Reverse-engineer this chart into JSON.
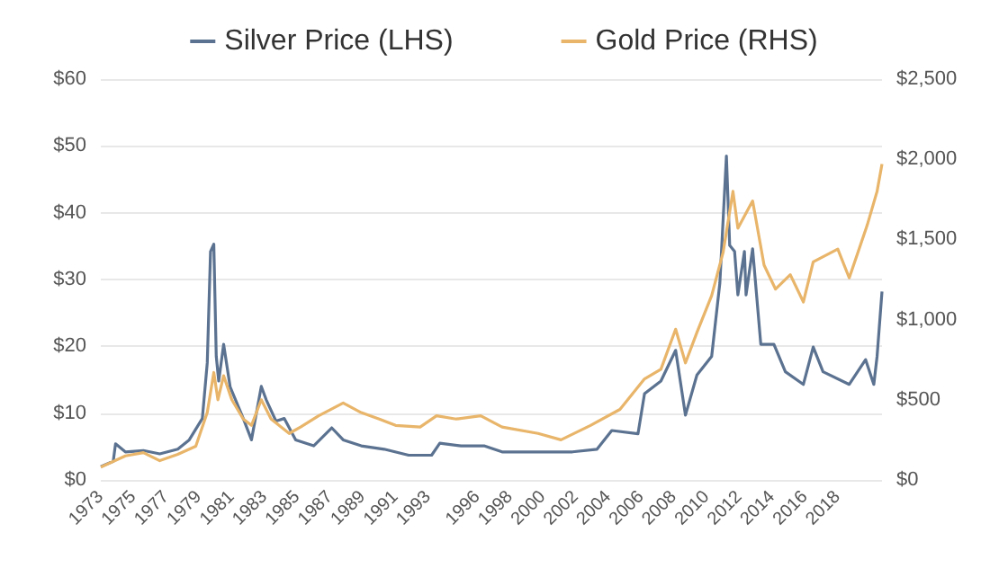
{
  "chart_data": {
    "type": "line",
    "legend": "top",
    "grid": "y",
    "marker": "none",
    "line_style": "solid",
    "xlim": [
      1973,
      2020.7
    ],
    "xticks": [
      1973,
      1975,
      1977,
      1979,
      1981,
      1983,
      1985,
      1987,
      1989,
      1991,
      1993,
      1996,
      1998,
      2000,
      2002,
      2004,
      2006,
      2008,
      2010,
      2012,
      2014,
      2016,
      2018
    ],
    "ylim": [
      0,
      60
    ],
    "yticks": [
      {
        "value": 0,
        "label": "$0"
      },
      {
        "value": 10,
        "label": "$10"
      },
      {
        "value": 20,
        "label": "$20"
      },
      {
        "value": 30,
        "label": "$30"
      },
      {
        "value": 40,
        "label": "$40"
      },
      {
        "value": 50,
        "label": "$50"
      },
      {
        "value": 60,
        "label": "$60"
      }
    ],
    "y2lim": [
      0,
      2500
    ],
    "y2ticks": [
      {
        "value": 0,
        "label": "$0"
      },
      {
        "value": 500,
        "label": "$500"
      },
      {
        "value": 1000,
        "label": "$1,000"
      },
      {
        "value": 1500,
        "label": "$1,500"
      },
      {
        "value": 2000,
        "label": "$2,000"
      },
      {
        "value": 2500,
        "label": "$2,500"
      }
    ],
    "series": [
      {
        "name": "Silver Price (LHS)",
        "color": "#5b7290",
        "x": [
          1973,
          1973.76,
          1973.9,
          1974.5,
          1975.6,
          1976.6,
          1977.7,
          1978.4,
          1979.2,
          1979.5,
          1979.7,
          1979.9,
          1980.05,
          1980.2,
          1980.5,
          1980.9,
          1981.7,
          1982.2,
          1982.8,
          1983.1,
          1983.7,
          1984.2,
          1984.9,
          1986,
          1987.1,
          1987.8,
          1988.9,
          1990.3,
          1991.8,
          1993.2,
          1993.7,
          1995,
          1996.4,
          1997.5,
          1999.7,
          2001.8,
          2003.3,
          2004.2,
          2005.8,
          2006.2,
          2007.2,
          2008.1,
          2008.7,
          2009.4,
          2010.3,
          2010.8,
          2011.2,
          2011.4,
          2011.7,
          2011.9,
          2012.3,
          2012.4,
          2012.8,
          2013.3,
          2014.1,
          2014.8,
          2015.9,
          2016.5,
          2017.1,
          2018.7,
          2019.7,
          2020.2,
          2020.4,
          2020.7
        ],
        "values": [
          2.0,
          2.8,
          5.4,
          4.2,
          4.4,
          3.9,
          4.6,
          6.0,
          9.2,
          17.5,
          34.2,
          35.3,
          18.5,
          14.8,
          20.3,
          13.9,
          9.2,
          6.0,
          14.0,
          12.0,
          8.8,
          9.2,
          6.0,
          5.1,
          7.8,
          6.0,
          5.1,
          4.6,
          3.7,
          3.7,
          5.5,
          5.1,
          5.1,
          4.2,
          4.2,
          4.2,
          4.6,
          7.4,
          6.9,
          12.9,
          14.8,
          19.4,
          9.7,
          15.7,
          18.5,
          29.5,
          48.5,
          35.1,
          34.2,
          27.7,
          34.2,
          27.7,
          34.6,
          20.3,
          20.3,
          16.2,
          14.3,
          19.9,
          16.2,
          14.3,
          18.0,
          14.3,
          18.5,
          28.2
        ]
      },
      {
        "name": "Gold Price (RHS)",
        "color": "#e8b56a",
        "axis": "y2",
        "x": [
          1973,
          1974.5,
          1975.6,
          1976.6,
          1977.7,
          1978.8,
          1979.5,
          1979.9,
          1980.15,
          1980.5,
          1981,
          1981.7,
          1982.2,
          1982.8,
          1983.4,
          1984.5,
          1985.2,
          1986.3,
          1987.8,
          1988.9,
          1990,
          1991,
          1992.5,
          1993.5,
          1994.7,
          1996.2,
          1997.5,
          1999.7,
          2001.1,
          2002.9,
          2004.7,
          2006.2,
          2007.2,
          2008.1,
          2008.7,
          2009.4,
          2010.3,
          2011,
          2011.6,
          2011.9,
          2012.8,
          2013.5,
          2014.2,
          2015.1,
          2015.9,
          2016.5,
          2018,
          2018.7,
          2019.8,
          2020.4,
          2020.7
        ],
        "values": [
          80,
          150,
          170,
          120,
          160,
          210,
          420,
          670,
          500,
          650,
          500,
          380,
          340,
          500,
          380,
          290,
          330,
          400,
          480,
          420,
          380,
          340,
          330,
          400,
          380,
          400,
          330,
          290,
          250,
          340,
          440,
          630,
          690,
          940,
          730,
          920,
          1150,
          1420,
          1800,
          1570,
          1740,
          1340,
          1190,
          1280,
          1110,
          1360,
          1440,
          1260,
          1590,
          1800,
          1970
        ]
      }
    ]
  }
}
